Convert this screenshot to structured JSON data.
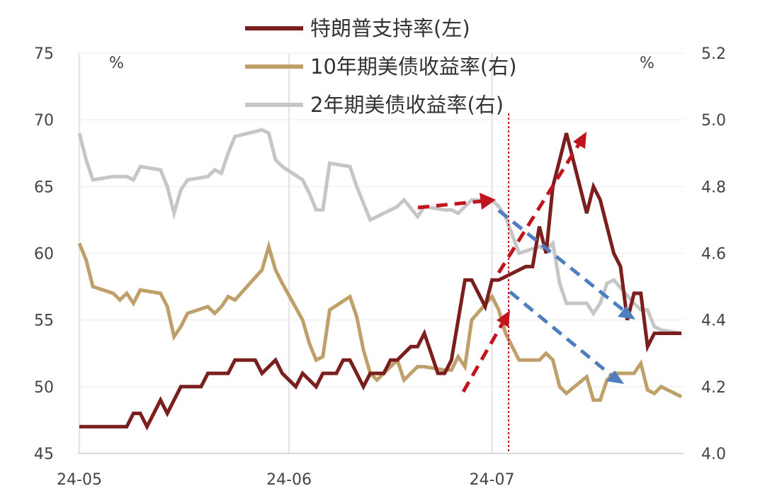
{
  "chart_data": {
    "type": "line",
    "x_ticks": [
      "24-05",
      "24-06",
      "24-07"
    ],
    "y_left": {
      "unit": "%",
      "range": [
        45,
        75
      ],
      "ticks": [
        45,
        50,
        55,
        60,
        65,
        70,
        75
      ]
    },
    "y_right": {
      "unit": "%",
      "range": [
        4.0,
        5.2
      ],
      "ticks": [
        "4.0",
        "4.2",
        "4.4",
        "4.6",
        "4.8",
        "5.0",
        "5.2"
      ]
    },
    "grid": "vertical",
    "legend_position": "top",
    "marker_date": "2024-07-02",
    "series": [
      {
        "name": "特朗普支持率(左)",
        "axis": "left",
        "color": "#7a1e1e",
        "x": [
          "2024-05-01",
          "2024-05-08",
          "2024-05-09",
          "2024-05-10",
          "2024-05-11",
          "2024-05-12",
          "2024-05-13",
          "2024-05-14",
          "2024-05-16",
          "2024-05-17",
          "2024-05-18",
          "2024-05-19",
          "2024-05-20",
          "2024-05-23",
          "2024-05-24",
          "2024-05-27",
          "2024-05-28",
          "2024-05-30",
          "2024-05-31",
          "2024-06-02",
          "2024-06-03",
          "2024-06-05",
          "2024-06-06",
          "2024-06-08",
          "2024-06-09",
          "2024-06-10",
          "2024-06-12",
          "2024-06-13",
          "2024-06-15",
          "2024-06-16",
          "2024-06-17",
          "2024-06-19",
          "2024-06-20",
          "2024-06-21",
          "2024-06-23",
          "2024-06-24",
          "2024-06-25",
          "2024-06-27",
          "2024-06-28",
          "2024-06-30",
          "2024-07-01",
          "2024-07-02",
          "2024-07-06",
          "2024-07-07",
          "2024-07-08",
          "2024-07-09",
          "2024-07-10",
          "2024-07-11",
          "2024-07-12",
          "2024-07-13",
          "2024-07-15",
          "2024-07-16",
          "2024-07-17",
          "2024-07-19",
          "2024-07-20",
          "2024-07-21",
          "2024-07-22",
          "2024-07-23",
          "2024-07-24",
          "2024-07-25",
          "2024-07-26",
          "2024-07-27",
          "2024-07-28",
          "2024-07-29"
        ],
        "values": [
          47,
          47,
          48,
          48,
          47,
          48,
          49,
          48,
          50,
          50,
          50,
          50,
          51,
          51,
          52,
          52,
          51,
          52,
          51,
          50,
          51,
          50,
          51,
          51,
          52,
          52,
          50,
          51,
          51,
          52,
          52,
          53,
          53,
          54,
          51,
          51,
          52,
          58,
          58,
          56,
          58,
          58,
          59,
          59,
          62,
          60,
          65,
          67,
          69,
          67,
          63,
          65,
          64,
          60,
          59,
          55,
          57,
          57,
          53,
          54,
          54,
          54,
          54,
          54
        ]
      },
      {
        "name": "10年期美债收益率(右)",
        "axis": "right",
        "color": "#c0a06a",
        "x": [
          "2024-05-01",
          "2024-05-02",
          "2024-05-03",
          "2024-05-06",
          "2024-05-07",
          "2024-05-08",
          "2024-05-09",
          "2024-05-10",
          "2024-05-13",
          "2024-05-14",
          "2024-05-15",
          "2024-05-16",
          "2024-05-17",
          "2024-05-20",
          "2024-05-21",
          "2024-05-22",
          "2024-05-23",
          "2024-05-24",
          "2024-05-28",
          "2024-05-29",
          "2024-05-30",
          "2024-05-31",
          "2024-06-03",
          "2024-06-04",
          "2024-06-05",
          "2024-06-06",
          "2024-06-07",
          "2024-06-10",
          "2024-06-11",
          "2024-06-12",
          "2024-06-13",
          "2024-06-14",
          "2024-06-17",
          "2024-06-18",
          "2024-06-20",
          "2024-06-21",
          "2024-06-24",
          "2024-06-25",
          "2024-06-26",
          "2024-06-27",
          "2024-06-28",
          "2024-07-01",
          "2024-07-02",
          "2024-07-03",
          "2024-07-05",
          "2024-07-08",
          "2024-07-09",
          "2024-07-10",
          "2024-07-11",
          "2024-07-12",
          "2024-07-15",
          "2024-07-16",
          "2024-07-17",
          "2024-07-18",
          "2024-07-19",
          "2024-07-22",
          "2024-07-23",
          "2024-07-24",
          "2024-07-25",
          "2024-07-26",
          "2024-07-29"
        ],
        "values": [
          4.63,
          4.58,
          4.5,
          4.48,
          4.46,
          4.48,
          4.45,
          4.49,
          4.48,
          4.44,
          4.35,
          4.38,
          4.42,
          4.44,
          4.42,
          4.44,
          4.47,
          4.46,
          4.55,
          4.62,
          4.55,
          4.51,
          4.4,
          4.33,
          4.28,
          4.29,
          4.43,
          4.47,
          4.41,
          4.31,
          4.24,
          4.22,
          4.28,
          4.22,
          4.26,
          4.26,
          4.25,
          4.25,
          4.29,
          4.26,
          4.4,
          4.47,
          4.43,
          4.36,
          4.28,
          4.28,
          4.3,
          4.28,
          4.2,
          4.18,
          4.23,
          4.16,
          4.16,
          4.22,
          4.24,
          4.24,
          4.27,
          4.19,
          4.18,
          4.2,
          4.17
        ]
      },
      {
        "name": "2年期美债收益率(右)",
        "axis": "right",
        "color": "#c6c6c6",
        "x": [
          "2024-05-01",
          "2024-05-02",
          "2024-05-03",
          "2024-05-06",
          "2024-05-07",
          "2024-05-08",
          "2024-05-09",
          "2024-05-10",
          "2024-05-13",
          "2024-05-14",
          "2024-05-15",
          "2024-05-16",
          "2024-05-17",
          "2024-05-20",
          "2024-05-21",
          "2024-05-22",
          "2024-05-23",
          "2024-05-24",
          "2024-05-28",
          "2024-05-29",
          "2024-05-30",
          "2024-05-31",
          "2024-06-03",
          "2024-06-04",
          "2024-06-05",
          "2024-06-06",
          "2024-06-07",
          "2024-06-10",
          "2024-06-11",
          "2024-06-12",
          "2024-06-13",
          "2024-06-14",
          "2024-06-17",
          "2024-06-18",
          "2024-06-20",
          "2024-06-21",
          "2024-06-24",
          "2024-06-25",
          "2024-06-26",
          "2024-06-27",
          "2024-06-28",
          "2024-07-01",
          "2024-07-02",
          "2024-07-03",
          "2024-07-05",
          "2024-07-08",
          "2024-07-09",
          "2024-07-10",
          "2024-07-11",
          "2024-07-12",
          "2024-07-15",
          "2024-07-16",
          "2024-07-17",
          "2024-07-18",
          "2024-07-19",
          "2024-07-22",
          "2024-07-23",
          "2024-07-24",
          "2024-07-25",
          "2024-07-26",
          "2024-07-29"
        ],
        "values": [
          4.96,
          4.88,
          4.82,
          4.83,
          4.83,
          4.83,
          4.82,
          4.86,
          4.85,
          4.8,
          4.72,
          4.79,
          4.82,
          4.83,
          4.85,
          4.84,
          4.9,
          4.95,
          4.97,
          4.96,
          4.88,
          4.86,
          4.82,
          4.78,
          4.73,
          4.73,
          4.87,
          4.86,
          4.8,
          4.75,
          4.7,
          4.71,
          4.74,
          4.76,
          4.71,
          4.74,
          4.73,
          4.73,
          4.72,
          4.74,
          4.76,
          4.76,
          4.74,
          4.71,
          4.6,
          4.62,
          4.61,
          4.63,
          4.51,
          4.45,
          4.45,
          4.42,
          4.45,
          4.51,
          4.52,
          4.45,
          4.43,
          4.43,
          4.38,
          4.37,
          4.36
        ]
      }
    ]
  }
}
